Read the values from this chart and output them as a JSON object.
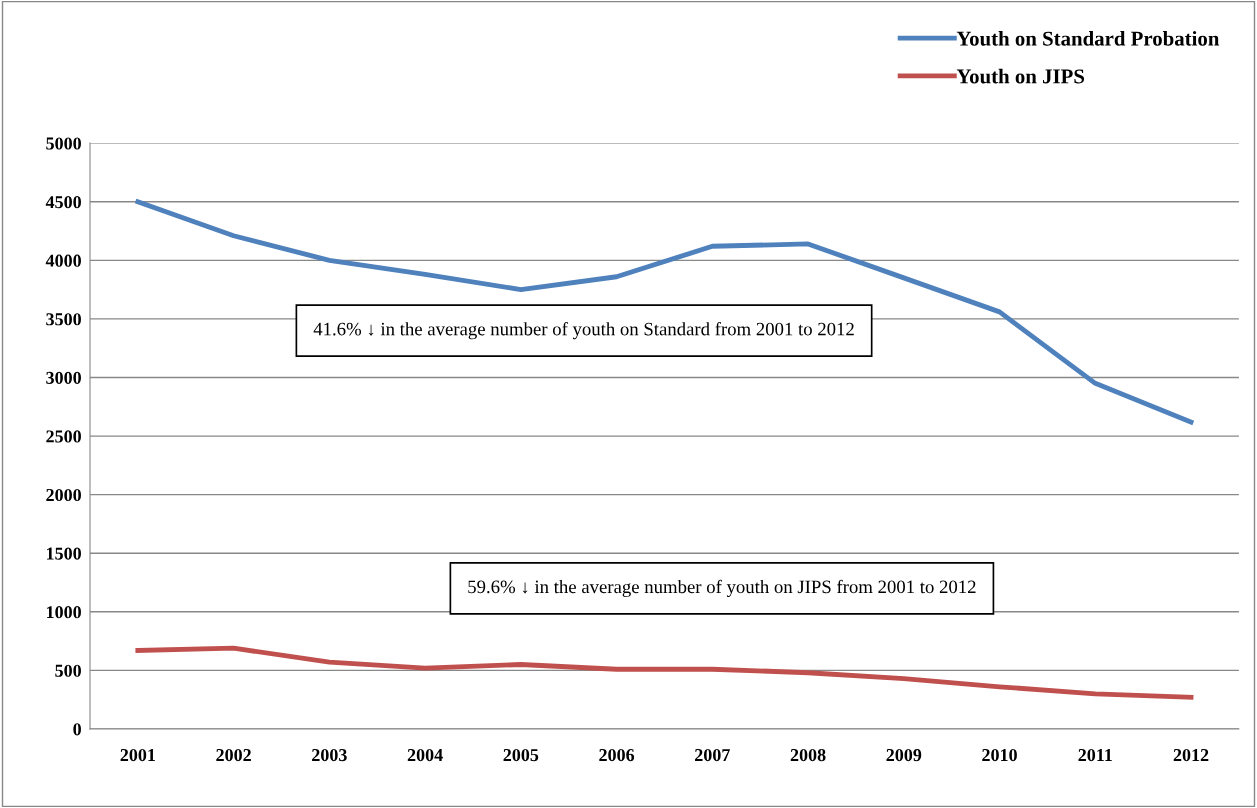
{
  "chart_data": {
    "type": "line",
    "categories": [
      "2001",
      "2002",
      "2003",
      "2004",
      "2005",
      "2006",
      "2007",
      "2008",
      "2009",
      "2010",
      "2011",
      "2012"
    ],
    "series": [
      {
        "name": "Youth on Standard Probation",
        "color": "#4f81bd",
        "values": [
          4500,
          4210,
          4000,
          3880,
          3750,
          3860,
          4120,
          4140,
          3850,
          3560,
          2950,
          2620
        ]
      },
      {
        "name": "Youth on JIPS",
        "color": "#c0504d",
        "values": [
          670,
          690,
          570,
          520,
          550,
          510,
          510,
          480,
          430,
          360,
          300,
          270
        ]
      }
    ],
    "ylim": [
      0,
      5000
    ],
    "yticks": [
      0,
      500,
      1000,
      1500,
      2000,
      2500,
      3000,
      3500,
      4000,
      4500,
      5000
    ],
    "grid": "y",
    "legend": "top right",
    "marker": "none",
    "line_style": "solid",
    "annotations": [
      "41.6% ↓ in the average number of youth on Standard from 2001 to 2012",
      "59.6% ↓ in the average number of youth on JIPS from 2001 to 2012"
    ]
  }
}
